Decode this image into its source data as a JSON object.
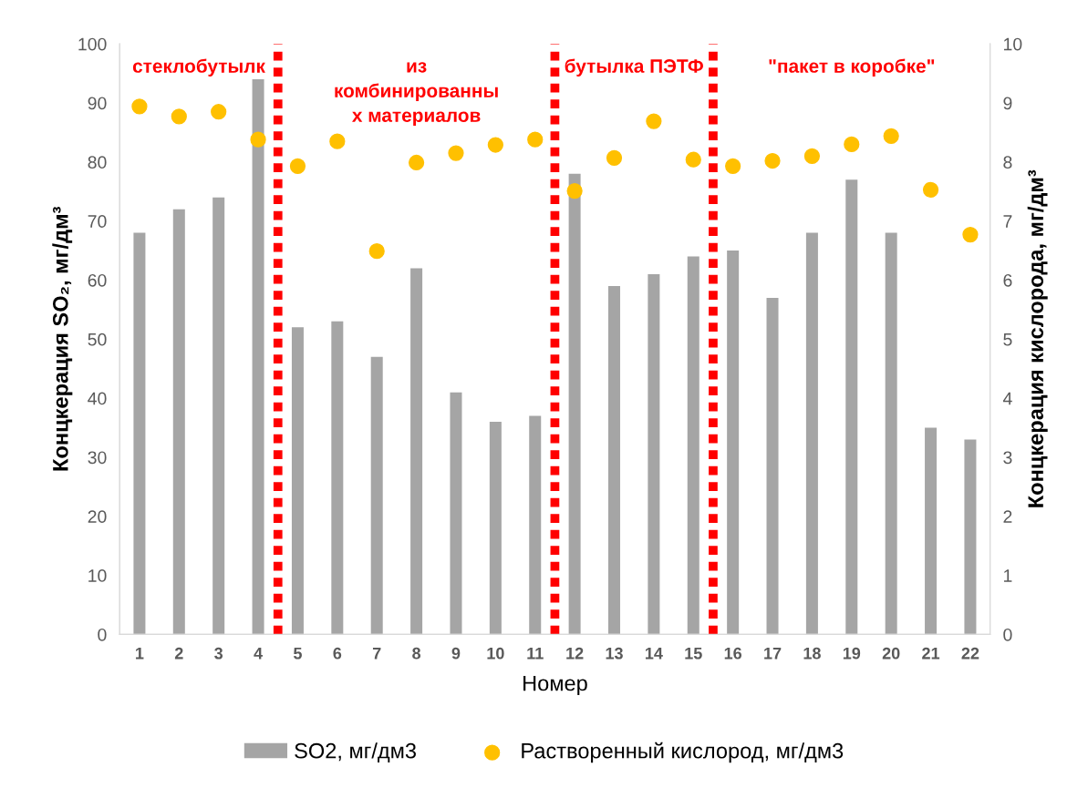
{
  "chart_data": {
    "type": "bar",
    "xlabel": "Номер",
    "ylabel": "Концкерация SO₂, мг/дм³",
    "y2label": "Концкерация кислорода, мг/дм³",
    "x": [
      1,
      2,
      3,
      4,
      5,
      6,
      7,
      8,
      9,
      10,
      11,
      12,
      13,
      14,
      15,
      16,
      17,
      18,
      19,
      20,
      21,
      22
    ],
    "xlim": [
      0.5,
      22.5
    ],
    "xticks": [
      1,
      2,
      3,
      4,
      5,
      6,
      7,
      8,
      9,
      10,
      11,
      12,
      13,
      14,
      15,
      16,
      17,
      18,
      19,
      20,
      21,
      22
    ],
    "ylim": [
      0,
      100
    ],
    "yticks": [
      0,
      10,
      20,
      30,
      40,
      50,
      60,
      70,
      80,
      90,
      100
    ],
    "y2lim": [
      0,
      10
    ],
    "y2ticks": [
      0,
      1,
      2,
      3,
      4,
      5,
      6,
      7,
      8,
      9,
      10
    ],
    "series": [
      {
        "name": "SO2, мг/дм3",
        "color": "#a5a5a5",
        "values": [
          68,
          72,
          74,
          94,
          52,
          53,
          47,
          62,
          41,
          36,
          37,
          78,
          59,
          61,
          64,
          65,
          57,
          68,
          77,
          68,
          35,
          33
        ]
      },
      {
        "name": "Растворенный кислород, мг/дм3",
        "type": "scatter",
        "axis": "y2",
        "color": "#ffc000",
        "marker": "circle",
        "values": [
          8.94,
          8.77,
          8.85,
          8.38,
          7.93,
          8.35,
          6.49,
          7.99,
          8.15,
          8.29,
          8.38,
          7.51,
          8.07,
          8.69,
          8.04,
          7.93,
          8.02,
          8.1,
          8.3,
          8.44,
          7.53,
          6.77
        ]
      }
    ],
    "ref_lines": [
      {
        "axis": "x",
        "value": 4.5,
        "color": "#ff0000",
        "line_style": "dotted"
      },
      {
        "axis": "x",
        "value": 11.5,
        "color": "#ff0000",
        "line_style": "dotted"
      },
      {
        "axis": "x",
        "value": 15.5,
        "color": "#ff0000",
        "line_style": "dotted"
      }
    ],
    "annotations": [
      "стеклобутылк",
      "из\nкомбинированны\nх материалов",
      "бутылка ПЭТФ",
      "\"пакет в коробке\""
    ],
    "grid": false,
    "legend": "bottom"
  }
}
